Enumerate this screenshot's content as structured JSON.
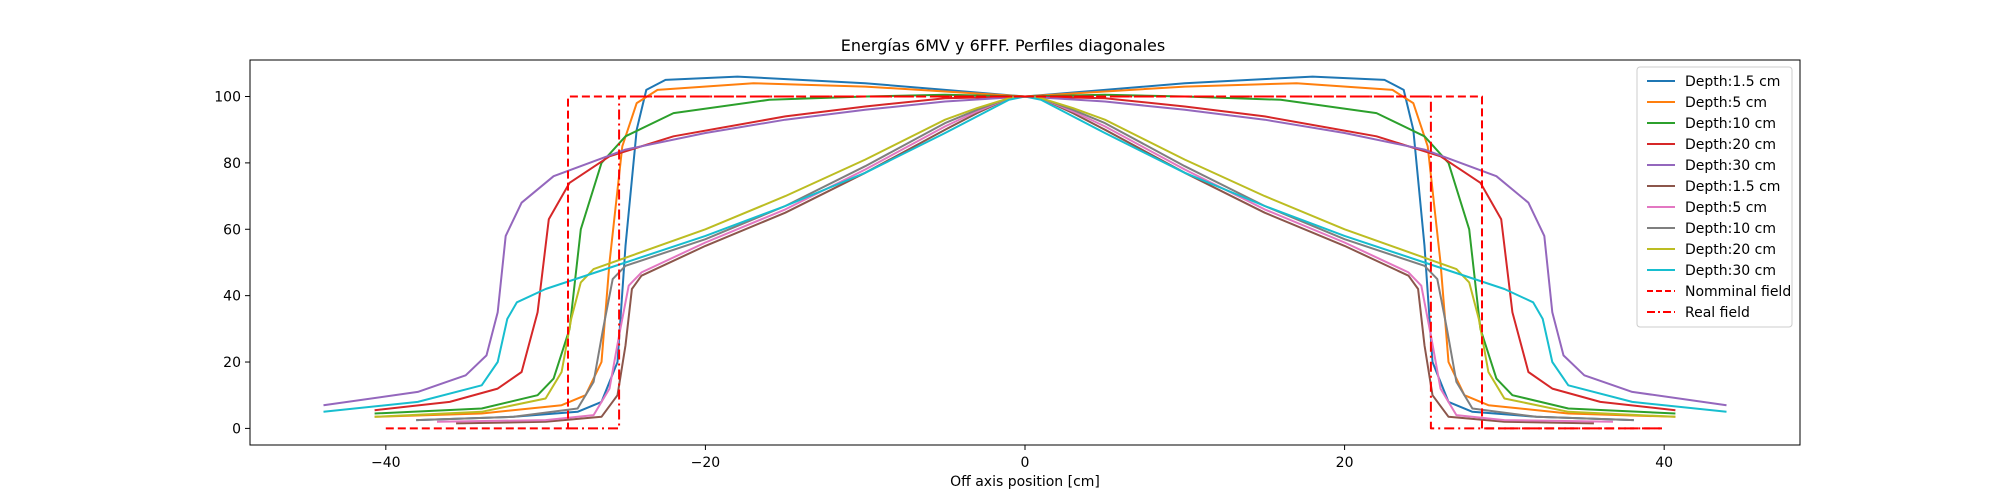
{
  "chart_data": {
    "type": "line",
    "title": "Energías 6MV y 6FFF. Perfiles diagonales",
    "xlabel": "Off axis position [cm]",
    "ylabel": "",
    "xlim": [
      -48.5,
      48.5
    ],
    "ylim": [
      -5,
      111
    ],
    "xticks": [
      -40,
      -20,
      0,
      20,
      40
    ],
    "xtick_labels": [
      "−40",
      "−20",
      "0",
      "20",
      "40"
    ],
    "yticks": [
      0,
      20,
      40,
      60,
      80,
      100
    ],
    "ytick_labels": [
      "0",
      "20",
      "40",
      "60",
      "80",
      "100"
    ],
    "grid": false,
    "legend_position": "top-right",
    "series": [
      {
        "name": "Depth:1.5 cm",
        "color": "#1f77b4",
        "style": "solid",
        "x": [
          -38.1,
          -32,
          -28,
          -26.5,
          -25.5,
          -25,
          -24.3,
          -23.7,
          -22.5,
          -18,
          -10,
          -5,
          0,
          5,
          10,
          18,
          22.5,
          23.7,
          24.3,
          25,
          25.5,
          26.5,
          28,
          32,
          38.1
        ],
        "y": [
          2.5,
          3.5,
          5,
          8,
          20,
          55,
          90,
          102,
          105,
          106,
          104,
          102,
          100,
          102,
          104,
          106,
          105,
          102,
          90,
          55,
          20,
          8,
          5,
          3.5,
          2.5
        ]
      },
      {
        "name": "Depth:5 cm",
        "color": "#ff7f0e",
        "style": "solid",
        "x": [
          -40.7,
          -34,
          -29,
          -27.5,
          -26.5,
          -26,
          -25.2,
          -24.3,
          -23,
          -17,
          -10,
          -5,
          0,
          5,
          10,
          17,
          23,
          24.3,
          25.2,
          26,
          26.5,
          27.5,
          29,
          34,
          40.7
        ],
        "y": [
          3.5,
          4.5,
          7,
          10,
          20,
          50,
          85,
          98,
          102,
          104,
          103,
          101.5,
          100,
          101.5,
          103,
          104,
          102,
          98,
          85,
          50,
          20,
          10,
          7,
          4.5,
          3.5
        ]
      },
      {
        "name": "Depth:10 cm",
        "color": "#2ca02c",
        "style": "solid",
        "x": [
          -40.7,
          -34,
          -30.5,
          -29.5,
          -28.5,
          -27.8,
          -26.5,
          -25,
          -22,
          -16,
          -10,
          -5,
          0,
          5,
          10,
          16,
          22,
          25,
          26.5,
          27.8,
          28.5,
          29.5,
          30.5,
          34,
          40.7
        ],
        "y": [
          4.5,
          6,
          10,
          15,
          30,
          60,
          80,
          88,
          95,
          99,
          100,
          100.5,
          100,
          100.5,
          100,
          99,
          95,
          88,
          80,
          60,
          30,
          15,
          10,
          6,
          4.5
        ]
      },
      {
        "name": "Depth:20 cm",
        "color": "#d62728",
        "style": "solid",
        "x": [
          -40.7,
          -36,
          -33,
          -31.5,
          -30.5,
          -29.8,
          -28.5,
          -26,
          -22,
          -15,
          -10,
          -5,
          0,
          5,
          10,
          15,
          22,
          26,
          28.5,
          29.8,
          30.5,
          31.5,
          33,
          36,
          40.7
        ],
        "y": [
          5.5,
          8,
          12,
          17,
          35,
          63,
          74,
          82,
          88,
          94,
          97,
          99.5,
          100,
          99.5,
          97,
          94,
          88,
          82,
          74,
          63,
          35,
          17,
          12,
          8,
          5.5
        ]
      },
      {
        "name": "Depth:30 cm",
        "color": "#9467bd",
        "style": "solid",
        "x": [
          -43.9,
          -38,
          -35,
          -33.7,
          -33,
          -32.5,
          -31.5,
          -29.5,
          -25,
          -20,
          -15,
          -10,
          -5,
          0,
          5,
          10,
          15,
          20,
          25,
          29.5,
          31.5,
          32.5,
          33,
          33.7,
          35,
          38,
          43.9
        ],
        "y": [
          7,
          11,
          16,
          22,
          35,
          58,
          68,
          76,
          84,
          89,
          93,
          96,
          98.5,
          100,
          98.5,
          96,
          93,
          89,
          84,
          76,
          68,
          58,
          35,
          22,
          16,
          11,
          7
        ]
      },
      {
        "name": "Depth:1.5 cm",
        "color": "#8c564b",
        "style": "solid",
        "x": [
          -35.6,
          -30,
          -26.5,
          -25.5,
          -25,
          -24.6,
          -24,
          -20,
          -15,
          -10,
          -5,
          -3,
          -1,
          0,
          1,
          3,
          5,
          10,
          15,
          20,
          24,
          24.6,
          25,
          25.5,
          26.5,
          30,
          35.6
        ],
        "y": [
          1.5,
          2,
          3.5,
          10,
          25,
          42,
          46,
          55,
          65,
          77,
          90,
          95,
          99.5,
          100,
          99.5,
          95,
          90,
          77,
          65,
          55,
          46,
          42,
          25,
          10,
          3.5,
          2,
          1.5
        ]
      },
      {
        "name": "Depth:5 cm",
        "color": "#e377c2",
        "style": "solid",
        "x": [
          -36.8,
          -30,
          -27,
          -26,
          -25.4,
          -24.8,
          -24,
          -20,
          -15,
          -10,
          -5,
          -3,
          -1,
          0,
          1,
          3,
          5,
          10,
          15,
          20,
          24,
          24.8,
          25.4,
          26,
          27,
          30,
          36.8
        ],
        "y": [
          2,
          2.5,
          4,
          12,
          28,
          43,
          47,
          56,
          66,
          78,
          91,
          95.5,
          99.5,
          100,
          99.5,
          95.5,
          91,
          78,
          66,
          56,
          47,
          43,
          28,
          12,
          4,
          2.5,
          2
        ]
      },
      {
        "name": "Depth:10 cm",
        "color": "#7f7f7f",
        "style": "solid",
        "x": [
          -38.1,
          -32,
          -28,
          -27,
          -26.4,
          -25.8,
          -25,
          -20,
          -15,
          -10,
          -5,
          -3,
          -1,
          0,
          1,
          3,
          5,
          10,
          15,
          20,
          25,
          25.8,
          26.4,
          27,
          28,
          32,
          38.1
        ],
        "y": [
          2.5,
          3.5,
          6,
          14,
          30,
          45,
          49,
          57,
          67,
          79,
          92,
          96,
          99.5,
          100,
          99.5,
          96,
          92,
          79,
          67,
          57,
          49,
          45,
          30,
          14,
          6,
          3.5,
          2.5
        ]
      },
      {
        "name": "Depth:20 cm",
        "color": "#bcbd22",
        "style": "solid",
        "x": [
          -40.7,
          -34,
          -30,
          -29,
          -28.4,
          -27.8,
          -27,
          -20,
          -15,
          -10,
          -5,
          -3,
          -1,
          0,
          1,
          3,
          5,
          10,
          15,
          20,
          27,
          27.8,
          28.4,
          29,
          30,
          34,
          40.7
        ],
        "y": [
          3.5,
          5,
          9,
          17,
          33,
          44,
          48,
          60,
          70,
          81,
          93,
          96.5,
          99.5,
          100,
          99.5,
          96.5,
          93,
          81,
          70,
          60,
          48,
          44,
          33,
          17,
          9,
          5,
          3.5
        ]
      },
      {
        "name": "Depth:30 cm",
        "color": "#17becf",
        "style": "solid",
        "x": [
          -43.9,
          -38,
          -34,
          -33,
          -32.4,
          -31.8,
          -30,
          -25,
          -20,
          -15,
          -10,
          -5,
          -3,
          -1,
          0,
          1,
          3,
          5,
          10,
          15,
          20,
          25,
          30,
          31.8,
          32.4,
          33,
          34,
          38,
          43.9
        ],
        "y": [
          5,
          8,
          13,
          20,
          33,
          38,
          42,
          50,
          58,
          67,
          77,
          89,
          94,
          99,
          100,
          99,
          94,
          89,
          77,
          67,
          58,
          50,
          42,
          38,
          33,
          20,
          13,
          8,
          5
        ]
      },
      {
        "name": "Nomminal field",
        "color": "#ff0000",
        "style": "dashed",
        "x": [
          -40,
          -28.6,
          -28.6,
          28.6,
          28.6,
          40
        ],
        "y": [
          0,
          0,
          100,
          100,
          0,
          0
        ]
      },
      {
        "name": "Real field",
        "color": "#ff0000",
        "style": "dashdot",
        "x": [
          -28.6,
          -25.4,
          -25.4,
          25.4,
          25.4,
          40
        ],
        "y": [
          0,
          0,
          100,
          100,
          0,
          0
        ]
      }
    ]
  }
}
